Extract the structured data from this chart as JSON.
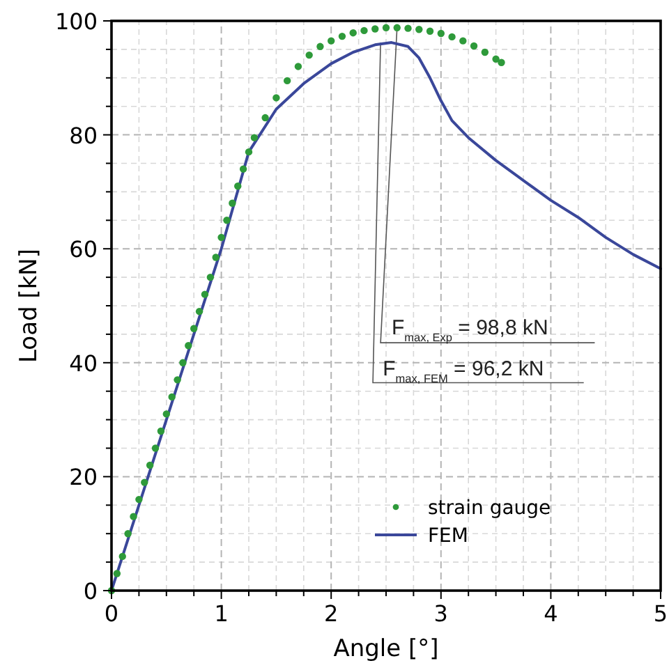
{
  "chart_data": {
    "type": "line",
    "xlabel": "Angle [°]",
    "ylabel": "Load [kN]",
    "xlim": [
      0,
      5
    ],
    "ylim": [
      0,
      100
    ],
    "xticks": [
      0,
      1,
      2,
      3,
      4,
      5
    ],
    "yticks": [
      0,
      20,
      40,
      60,
      80,
      100
    ],
    "grid": true,
    "legend": "bottom right",
    "series": [
      {
        "name": "strain gauge",
        "type": "scatter",
        "marker": "circle",
        "color": "#2e9a3a",
        "x": [
          0,
          0.05,
          0.1,
          0.15,
          0.2,
          0.25,
          0.3,
          0.35,
          0.4,
          0.45,
          0.5,
          0.55,
          0.6,
          0.65,
          0.7,
          0.75,
          0.8,
          0.85,
          0.9,
          0.95,
          1,
          1.05,
          1.1,
          1.15,
          1.2,
          1.25,
          1.3,
          1.4,
          1.5,
          1.6,
          1.7,
          1.8,
          1.9,
          2,
          2.1,
          2.2,
          2.3,
          2.4,
          2.5,
          2.6,
          2.7,
          2.8,
          2.9,
          3,
          3.1,
          3.2,
          3.3,
          3.4,
          3.5,
          3.55
        ],
        "values": [
          0,
          3,
          6,
          10,
          13,
          16,
          19,
          22,
          25,
          28,
          31,
          34,
          37,
          40,
          43,
          46,
          49,
          52,
          55,
          58.5,
          62,
          65,
          68,
          71,
          74,
          77,
          79.5,
          83,
          86.5,
          89.5,
          92,
          94,
          95.5,
          96.5,
          97.3,
          97.9,
          98.3,
          98.6,
          98.8,
          98.8,
          98.7,
          98.5,
          98.2,
          97.8,
          97.2,
          96.5,
          95.6,
          94.5,
          93.3,
          92.7
        ]
      },
      {
        "name": "FEM",
        "type": "line",
        "marker": "none",
        "color": "#3a479a",
        "x": [
          0,
          0.5,
          1,
          1.25,
          1.5,
          1.75,
          2,
          2.2,
          2.4,
          2.55,
          2.7,
          2.8,
          2.9,
          3,
          3.1,
          3.25,
          3.5,
          3.75,
          4,
          4.25,
          4.5,
          4.75,
          5
        ],
        "values": [
          0,
          30,
          60,
          77,
          84.5,
          89,
          92.5,
          94.5,
          95.8,
          96.2,
          95.5,
          93.5,
          90,
          86,
          82.5,
          79.5,
          75.5,
          72,
          68.5,
          65.5,
          62,
          59,
          56.5
        ]
      }
    ],
    "annotations": [
      {
        "text": "F$_{max, Exp}$ = 98,8 kN",
        "x": 2.6,
        "y": 98.8
      },
      {
        "text": "F$_{max, FEM}$ = 96,2 kN",
        "x": 2.45,
        "y": 96.2
      }
    ]
  }
}
